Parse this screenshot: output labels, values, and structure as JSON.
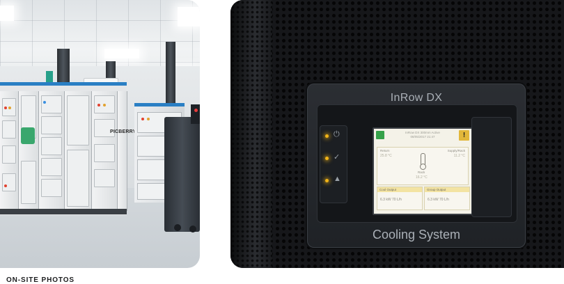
{
  "caption": "ON-SITE PHOTOS",
  "left_photo": {
    "watermark": "PICBERRY"
  },
  "right_photo": {
    "unit_model": "InRow DX",
    "unit_subtitle": "Cooling System",
    "display": {
      "status_line_1": "InRow DX  300mm  Active",
      "status_line_2": "08/05/2017 21:47",
      "return_label": "Return",
      "return_value": "25.8 °C",
      "supply_label": "Supply/Rack",
      "supply_value": "11.2 °C",
      "rack_label": "Rack",
      "rack_value": "16.2 °C",
      "cool_output_label": "Cool Output",
      "cool_output_value": "6.3 kW  70 L/h",
      "group_output_label": "Group Output",
      "group_output_value": "6.3 kW  70 L/h"
    },
    "led_icons": [
      "power-icon",
      "check-icon",
      "warning-icon"
    ]
  }
}
